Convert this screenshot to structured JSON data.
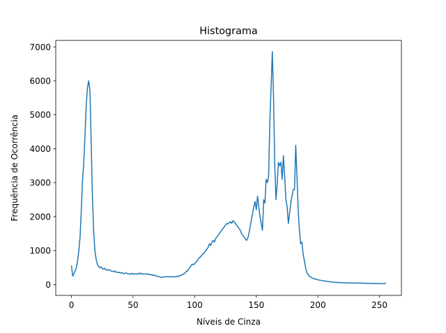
{
  "chart_data": {
    "type": "line",
    "title": "Histograma",
    "xlabel": "Níveis de Cinza",
    "ylabel": "Frequência de Ocorrência",
    "color": "#1f77b4",
    "x": [
      0,
      1,
      2,
      3,
      4,
      5,
      6,
      7,
      8,
      9,
      10,
      11,
      12,
      13,
      14,
      15,
      16,
      17,
      18,
      19,
      20,
      21,
      22,
      23,
      24,
      25,
      26,
      27,
      28,
      29,
      30,
      31,
      32,
      33,
      34,
      35,
      36,
      37,
      38,
      39,
      40,
      41,
      42,
      43,
      44,
      45,
      46,
      47,
      48,
      49,
      50,
      51,
      52,
      53,
      54,
      55,
      56,
      57,
      58,
      59,
      60,
      61,
      62,
      63,
      64,
      65,
      66,
      67,
      68,
      69,
      70,
      71,
      72,
      73,
      74,
      75,
      76,
      77,
      78,
      79,
      80,
      81,
      82,
      83,
      84,
      85,
      86,
      87,
      88,
      89,
      90,
      91,
      92,
      93,
      94,
      95,
      96,
      97,
      98,
      99,
      100,
      101,
      102,
      103,
      104,
      105,
      106,
      107,
      108,
      109,
      110,
      111,
      112,
      113,
      114,
      115,
      116,
      117,
      118,
      119,
      120,
      121,
      122,
      123,
      124,
      125,
      126,
      127,
      128,
      129,
      130,
      131,
      132,
      133,
      134,
      135,
      136,
      137,
      138,
      139,
      140,
      141,
      142,
      143,
      144,
      145,
      146,
      147,
      148,
      149,
      150,
      151,
      152,
      153,
      154,
      155,
      156,
      157,
      158,
      159,
      160,
      161,
      162,
      163,
      164,
      165,
      166,
      167,
      168,
      169,
      170,
      171,
      172,
      173,
      174,
      175,
      176,
      177,
      178,
      179,
      180,
      181,
      182,
      183,
      184,
      185,
      186,
      187,
      188,
      189,
      190,
      191,
      192,
      193,
      194,
      195,
      196,
      197,
      198,
      199,
      200,
      201,
      202,
      203,
      204,
      205,
      206,
      207,
      208,
      209,
      210,
      211,
      212,
      213,
      214,
      215,
      216,
      217,
      218,
      219,
      220,
      221,
      222,
      223,
      224,
      225,
      226,
      227,
      228,
      229,
      230,
      231,
      232,
      233,
      234,
      235,
      236,
      237,
      238,
      239,
      240,
      241,
      242,
      243,
      244,
      245,
      246,
      247,
      248,
      249,
      250,
      251,
      252,
      253,
      254,
      255
    ],
    "values": [
      560,
      250,
      320,
      400,
      500,
      700,
      1000,
      1400,
      2200,
      3100,
      3600,
      4400,
      5300,
      5800,
      6000,
      5700,
      4200,
      2600,
      1600,
      1000,
      750,
      600,
      530,
      500,
      520,
      470,
      450,
      480,
      430,
      420,
      440,
      430,
      400,
      390,
      380,
      400,
      360,
      370,
      350,
      360,
      340,
      350,
      330,
      320,
      340,
      330,
      310,
      320,
      300,
      330,
      310,
      300,
      320,
      310,
      300,
      340,
      310,
      330,
      300,
      320,
      310,
      300,
      320,
      290,
      300,
      280,
      270,
      290,
      260,
      250,
      240,
      230,
      220,
      210,
      220,
      230,
      220,
      230,
      240,
      220,
      230,
      220,
      240,
      230,
      220,
      240,
      230,
      250,
      260,
      270,
      300,
      310,
      330,
      380,
      400,
      450,
      500,
      550,
      600,
      580,
      620,
      650,
      700,
      750,
      800,
      820,
      880,
      900,
      950,
      1000,
      1050,
      1100,
      1200,
      1150,
      1250,
      1300,
      1250,
      1350,
      1400,
      1450,
      1500,
      1550,
      1600,
      1650,
      1700,
      1750,
      1800,
      1780,
      1820,
      1850,
      1800,
      1880,
      1850,
      1800,
      1750,
      1700,
      1650,
      1600,
      1500,
      1450,
      1400,
      1350,
      1300,
      1350,
      1500,
      1700,
      1900,
      2100,
      2300,
      2450,
      2200,
      2600,
      2300,
      2000,
      1800,
      1600,
      2500,
      2400,
      3100,
      3000,
      3200,
      4800,
      5800,
      6860,
      5500,
      3500,
      2500,
      3000,
      3600,
      3500,
      3600,
      3100,
      3800,
      3200,
      2500,
      2300,
      1800,
      2100,
      2400,
      2600,
      2800,
      2800,
      4100,
      3200,
      2200,
      1600,
      1200,
      1250,
      900,
      700,
      500,
      350,
      300,
      250,
      220,
      200,
      180,
      170,
      160,
      150,
      140,
      130,
      125,
      120,
      110,
      105,
      100,
      95,
      90,
      85,
      80,
      75,
      70,
      70,
      65,
      60,
      60,
      55,
      60,
      55,
      50,
      55,
      50,
      45,
      50,
      45,
      50,
      45,
      40,
      45,
      50,
      45,
      40,
      45,
      40,
      40,
      45,
      40,
      35,
      40,
      35,
      40,
      35,
      30,
      35,
      30,
      35,
      30,
      30,
      35,
      30,
      25,
      30,
      25,
      20,
      60
    ],
    "xlim": [
      -12.75,
      267.75
    ],
    "ylim": [
      -320,
      7190
    ],
    "xticks": [
      0,
      50,
      100,
      150,
      200,
      250
    ],
    "yticks": [
      0,
      1000,
      2000,
      3000,
      4000,
      5000,
      6000,
      7000
    ]
  }
}
